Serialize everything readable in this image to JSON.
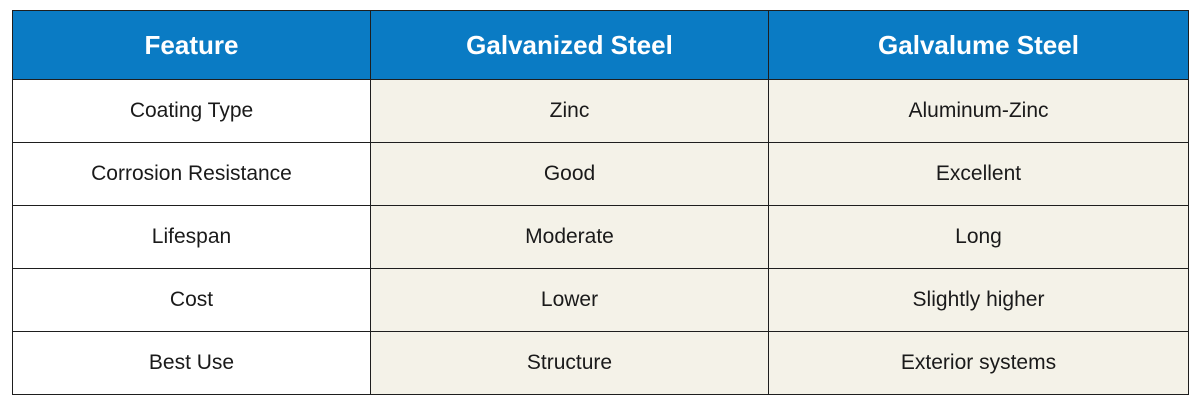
{
  "colors": {
    "header_bg": "#0a7bc4",
    "header_text": "#ffffff",
    "value_cell_bg": "#f4f2e8",
    "feature_cell_bg": "#ffffff",
    "border": "#1e1e1e"
  },
  "table": {
    "headers": [
      "Feature",
      "Galvanized Steel",
      "Galvalume Steel"
    ],
    "rows": [
      [
        "Coating Type",
        "Zinc",
        "Aluminum-Zinc"
      ],
      [
        "Corrosion Resistance",
        "Good",
        "Excellent"
      ],
      [
        "Lifespan",
        "Moderate",
        "Long"
      ],
      [
        "Cost",
        "Lower",
        "Slightly higher"
      ],
      [
        "Best Use",
        "Structure",
        "Exterior systems"
      ]
    ]
  }
}
